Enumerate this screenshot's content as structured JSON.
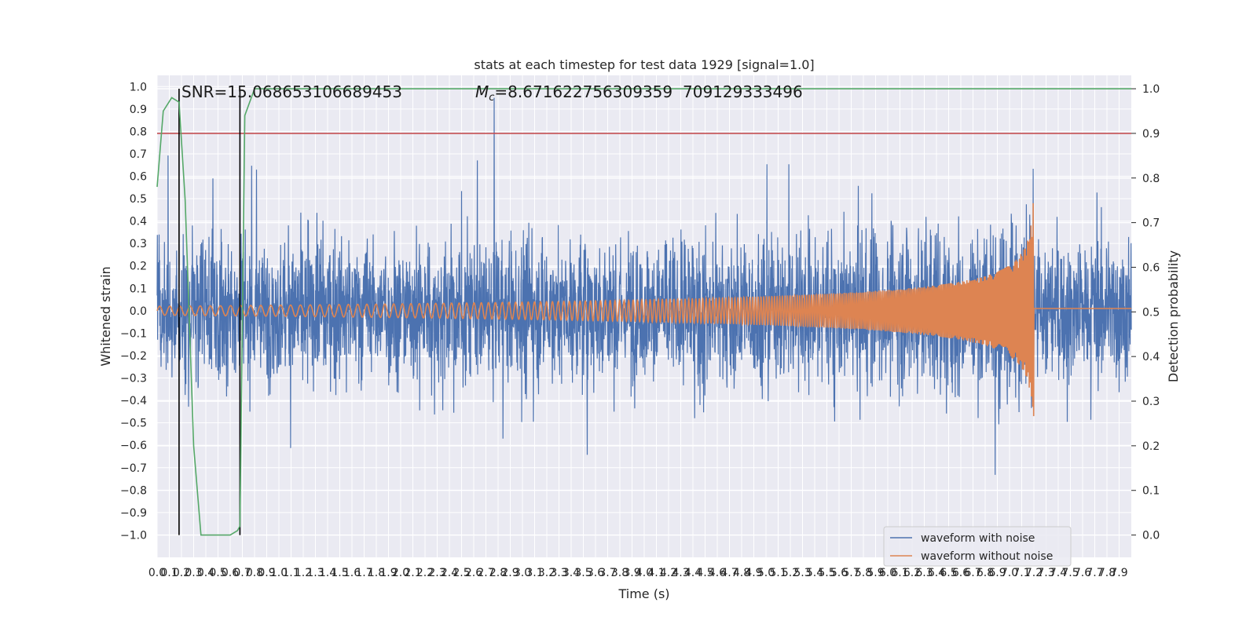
{
  "chart_data": {
    "type": "line",
    "title": "stats at each timestep for test data 1929 [signal=1.0]",
    "xlabel": "Time (s)",
    "ylabel": "Whitened strain",
    "y2label": "Detection probability",
    "xlim": [
      0.0,
      8.0
    ],
    "ylim": [
      -1.1,
      1.05
    ],
    "y2lim": [
      -0.05,
      1.03
    ],
    "x_ticks": [
      "0.0",
      "0.1",
      "0.2",
      "0.3",
      "0.4",
      "0.5",
      "0.6",
      "0.7",
      "0.8",
      "0.9",
      "1.0",
      "1.1",
      "1.2",
      "1.3",
      "1.4",
      "1.5",
      "1.6",
      "1.7",
      "1.8",
      "1.9",
      "2.0",
      "2.1",
      "2.2",
      "2.3",
      "2.4",
      "2.5",
      "2.6",
      "2.7",
      "2.8",
      "2.9",
      "3.0",
      "3.1",
      "3.2",
      "3.3",
      "3.4",
      "3.5",
      "3.6",
      "3.7",
      "3.8",
      "3.9",
      "4.0",
      "4.1",
      "4.2",
      "4.3",
      "4.4",
      "4.5",
      "4.6",
      "4.7",
      "4.8",
      "4.9",
      "5.0",
      "5.1",
      "5.2",
      "5.3",
      "5.4",
      "5.5",
      "5.6",
      "5.7",
      "5.8",
      "5.9",
      "6.0",
      "6.1",
      "6.2",
      "6.3",
      "6.4",
      "6.5",
      "6.6",
      "6.7",
      "6.8",
      "6.9",
      "7.0",
      "7.1",
      "7.2",
      "7.3",
      "7.4",
      "7.5",
      "7.6",
      "7.7",
      "7.8",
      "7.9"
    ],
    "y_ticks": [
      "1.0",
      "0.9",
      "0.8",
      "0.7",
      "0.6",
      "0.5",
      "0.4",
      "0.3",
      "0.2",
      "0.1",
      "0.0",
      "−0.1",
      "−0.2",
      "−0.3",
      "−0.4",
      "−0.5",
      "−0.6",
      "−0.7",
      "−0.8",
      "−0.9",
      "−1.0"
    ],
    "y2_ticks": [
      "1.0",
      "0.9",
      "0.8",
      "0.7",
      "0.6",
      "0.5",
      "0.4",
      "0.3",
      "0.2",
      "0.1",
      "0.0"
    ],
    "threshold": 0.9,
    "vlines": [
      0.18,
      0.68
    ],
    "noise_amplitude": 0.5,
    "chirp": {
      "start_amp": 0.02,
      "peak_amp": 0.55,
      "merger_time": 7.2,
      "f0": 12,
      "f1": 110
    },
    "detection_probability": {
      "x": [
        0.0,
        0.05,
        0.12,
        0.18,
        0.23,
        0.3,
        0.36,
        0.6,
        0.66,
        0.68,
        0.72,
        0.8,
        8.0
      ],
      "y": [
        0.78,
        0.95,
        0.98,
        0.97,
        0.75,
        0.2,
        0.0,
        0.0,
        0.01,
        0.02,
        0.94,
        1.0,
        1.0
      ]
    },
    "annotations": {
      "snr": "SNR=15.068653106689453",
      "mc": "=8.671622756309359",
      "overlap": "709129333496",
      "mc_symbol": "M",
      "mc_sub": "c"
    },
    "legend": [
      "waveform with noise",
      "waveform without noise"
    ],
    "legend_position": "lower-right",
    "colors": {
      "noise": "#4c72b0",
      "clean": "#dd8452",
      "probability": "#55a868",
      "threshold": "#c44e52",
      "vline": "#000000",
      "background": "#eaeaf2",
      "grid": "#ffffff"
    }
  }
}
